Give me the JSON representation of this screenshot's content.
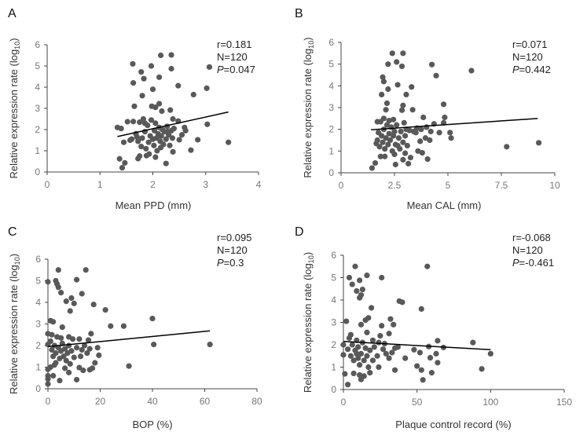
{
  "chart_data": [
    {
      "type": "scatter",
      "panel": "A",
      "xlabel": "Mean PPD (mm)",
      "ylabel": "Relative expression rate (log10)",
      "xlim": [
        0,
        4
      ],
      "ylim": [
        0,
        6
      ],
      "xticks": [
        "0",
        "1",
        "2",
        "3",
        "4"
      ],
      "yticks": [
        "0",
        "1",
        "2",
        "3",
        "4",
        "5",
        "6"
      ],
      "stats": {
        "r": "r=0.181",
        "n": "N=120",
        "p_label": "P",
        "p_value": "=0.047"
      },
      "fit": [
        [
          1.33,
          1.67
        ],
        [
          3.43,
          2.83
        ]
      ],
      "points": [
        [
          1.33,
          2.1
        ],
        [
          1.4,
          2.05
        ],
        [
          1.37,
          0.62
        ],
        [
          1.42,
          0.2
        ],
        [
          1.47,
          0.43
        ],
        [
          1.45,
          1.4
        ],
        [
          1.52,
          2.37
        ],
        [
          1.57,
          1.5
        ],
        [
          1.62,
          5.1
        ],
        [
          1.63,
          4.2
        ],
        [
          1.65,
          3.1
        ],
        [
          1.63,
          2.38
        ],
        [
          1.78,
          4.72
        ],
        [
          1.8,
          3.6
        ],
        [
          1.83,
          4.4
        ],
        [
          1.97,
          5.0
        ],
        [
          1.98,
          3.1
        ],
        [
          2.0,
          3.9
        ],
        [
          2.12,
          4.47
        ],
        [
          2.15,
          5.5
        ],
        [
          2.35,
          5.52
        ],
        [
          2.35,
          4.87
        ],
        [
          2.48,
          4.07
        ],
        [
          2.12,
          3.22
        ],
        [
          2.17,
          2.87
        ],
        [
          2.33,
          2.92
        ],
        [
          2.38,
          2.5
        ],
        [
          2.48,
          2.4
        ],
        [
          2.77,
          3.65
        ],
        [
          3.02,
          3.95
        ],
        [
          3.07,
          4.95
        ],
        [
          3.03,
          2.25
        ],
        [
          3.43,
          1.4
        ],
        [
          2.85,
          1.52
        ],
        [
          2.72,
          1.03
        ],
        [
          2.38,
          0.95
        ],
        [
          2.25,
          0.4
        ],
        [
          2.05,
          0.7
        ],
        [
          1.88,
          0.77
        ],
        [
          1.72,
          0.63
        ],
        [
          1.75,
          0.75
        ],
        [
          2.6,
          2.1
        ],
        [
          2.62,
          1.95
        ],
        [
          2.5,
          1.52
        ],
        [
          2.55,
          1.75
        ],
        [
          1.6,
          1.55
        ],
        [
          1.68,
          1.8
        ],
        [
          1.72,
          1.45
        ],
        [
          1.75,
          2.35
        ],
        [
          1.78,
          1.2
        ],
        [
          1.8,
          1.6
        ],
        [
          1.82,
          2.5
        ],
        [
          1.85,
          1.9
        ],
        [
          1.87,
          1.1
        ],
        [
          1.9,
          2.2
        ],
        [
          1.92,
          1.4
        ],
        [
          1.95,
          1.7
        ],
        [
          1.97,
          2.45
        ],
        [
          2.0,
          1.55
        ],
        [
          2.02,
          1.25
        ],
        [
          2.03,
          1.95
        ],
        [
          2.05,
          2.3
        ],
        [
          2.07,
          1.6
        ],
        [
          2.08,
          1.0
        ],
        [
          2.1,
          1.8
        ],
        [
          2.12,
          2.1
        ],
        [
          2.14,
          1.45
        ],
        [
          2.16,
          1.7
        ],
        [
          2.18,
          2.0
        ],
        [
          2.2,
          1.3
        ],
        [
          2.22,
          1.9
        ],
        [
          2.25,
          1.55
        ],
        [
          2.27,
          2.15
        ],
        [
          2.3,
          1.75
        ],
        [
          2.32,
          1.25
        ],
        [
          2.35,
          1.95
        ],
        [
          2.37,
          1.6
        ],
        [
          2.4,
          2.05
        ],
        [
          1.85,
          2.3
        ],
        [
          1.93,
          0.85
        ],
        [
          2.15,
          1.15
        ],
        [
          2.28,
          1.9
        ],
        [
          1.7,
          1.65
        ],
        [
          2.05,
          3.05
        ]
      ]
    },
    {
      "type": "scatter",
      "panel": "B",
      "xlabel": "Mean CAL (mm)",
      "ylabel": "Relative expression rate (log10)",
      "xlim": [
        0,
        10
      ],
      "ylim": [
        0,
        6
      ],
      "xticks": [
        "0",
        "2.5",
        "5",
        "7.5",
        "10"
      ],
      "yticks": [
        "0",
        "1",
        "2",
        "3",
        "4",
        "5",
        "6"
      ],
      "stats": {
        "r": "r=0.071",
        "n": "N=120",
        "p_label": "P",
        "p_value": "=0.442"
      },
      "fit": [
        [
          1.4,
          1.98
        ],
        [
          9.2,
          2.5
        ]
      ],
      "points": [
        [
          1.45,
          0.22
        ],
        [
          1.6,
          0.45
        ],
        [
          1.65,
          1.35
        ],
        [
          1.7,
          2.35
        ],
        [
          1.75,
          1.85
        ],
        [
          1.85,
          0.75
        ],
        [
          1.85,
          2.35
        ],
        [
          1.9,
          3.6
        ],
        [
          1.95,
          4.4
        ],
        [
          2.0,
          4.2
        ],
        [
          2.0,
          2.5
        ],
        [
          2.05,
          0.75
        ],
        [
          2.1,
          2.9
        ],
        [
          2.15,
          3.2
        ],
        [
          2.2,
          3.85
        ],
        [
          2.2,
          5.0
        ],
        [
          2.4,
          5.5
        ],
        [
          2.45,
          2.45
        ],
        [
          2.55,
          0.38
        ],
        [
          2.6,
          5.1
        ],
        [
          2.65,
          4.05
        ],
        [
          2.85,
          4.9
        ],
        [
          2.9,
          5.5
        ],
        [
          2.9,
          3.1
        ],
        [
          2.85,
          2.88
        ],
        [
          2.9,
          0.6
        ],
        [
          3.0,
          0.9
        ],
        [
          3.05,
          3.6
        ],
        [
          3.15,
          0.42
        ],
        [
          3.25,
          0.7
        ],
        [
          3.3,
          3.95
        ],
        [
          3.35,
          2.9
        ],
        [
          3.5,
          1.85
        ],
        [
          3.6,
          1.0
        ],
        [
          3.7,
          1.45
        ],
        [
          3.8,
          0.92
        ],
        [
          3.85,
          2.55
        ],
        [
          3.95,
          1.6
        ],
        [
          4.05,
          0.63
        ],
        [
          4.15,
          1.5
        ],
        [
          4.25,
          4.98
        ],
        [
          4.35,
          2.25
        ],
        [
          4.45,
          4.47
        ],
        [
          4.6,
          1.85
        ],
        [
          4.8,
          2.3
        ],
        [
          4.8,
          3.15
        ],
        [
          4.85,
          2.55
        ],
        [
          5.1,
          1.85
        ],
        [
          5.15,
          1.6
        ],
        [
          6.1,
          4.7
        ],
        [
          7.75,
          1.2
        ],
        [
          9.25,
          1.38
        ],
        [
          1.7,
          1.5
        ],
        [
          1.8,
          1.2
        ],
        [
          1.9,
          1.7
        ],
        [
          1.95,
          1.4
        ],
        [
          2.0,
          2.0
        ],
        [
          2.05,
          1.1
        ],
        [
          2.1,
          1.6
        ],
        [
          2.15,
          2.2
        ],
        [
          2.2,
          1.3
        ],
        [
          2.25,
          1.8
        ],
        [
          2.3,
          1.5
        ],
        [
          2.35,
          2.1
        ],
        [
          2.4,
          1.0
        ],
        [
          2.45,
          1.7
        ],
        [
          2.5,
          1.9
        ],
        [
          2.55,
          1.3
        ],
        [
          2.6,
          2.2
        ],
        [
          2.7,
          1.6
        ],
        [
          2.75,
          1.1
        ],
        [
          2.8,
          1.9
        ],
        [
          2.9,
          1.4
        ],
        [
          2.95,
          2.3
        ],
        [
          3.0,
          1.7
        ],
        [
          3.05,
          2.0
        ],
        [
          3.1,
          1.25
        ],
        [
          3.2,
          1.95
        ],
        [
          3.4,
          1.9
        ],
        [
          3.55,
          2.05
        ],
        [
          3.75,
          2.0
        ],
        [
          4.0,
          2.1
        ],
        [
          4.2,
          1.9
        ],
        [
          2.25,
          2.4
        ],
        [
          2.5,
          0.85
        ],
        [
          2.65,
          1.25
        ]
      ]
    },
    {
      "type": "scatter",
      "panel": "C",
      "xlabel": "BOP (%)",
      "ylabel": "Relative expression rate (log10)",
      "xlim": [
        0,
        80
      ],
      "ylim": [
        0,
        6
      ],
      "xticks": [
        "0",
        "20",
        "40",
        "60",
        "80"
      ],
      "yticks": [
        "0",
        "1",
        "2",
        "3",
        "4",
        "5",
        "6"
      ],
      "stats": {
        "r": "r=0.095",
        "n": "N=120",
        "p_label": "P",
        "p_value": "=0.3"
      },
      "fit": [
        [
          0,
          1.95
        ],
        [
          62,
          2.68
        ]
      ],
      "points": [
        [
          0,
          4.95
        ],
        [
          0,
          2.55
        ],
        [
          0,
          2.05
        ],
        [
          0,
          0.9
        ],
        [
          0,
          0.6
        ],
        [
          0,
          0.45
        ],
        [
          0,
          0.22
        ],
        [
          1,
          3.15
        ],
        [
          2,
          3.1
        ],
        [
          3,
          5.0
        ],
        [
          3.5,
          4.85
        ],
        [
          4,
          5.5
        ],
        [
          4,
          4.7
        ],
        [
          5,
          4.45
        ],
        [
          5,
          2.35
        ],
        [
          5.5,
          2.85
        ],
        [
          4.5,
          0.38
        ],
        [
          7,
          4.05
        ],
        [
          8,
          2.4
        ],
        [
          8.5,
          3.6
        ],
        [
          9,
          4.2
        ],
        [
          8,
          0.75
        ],
        [
          10,
          3.95
        ],
        [
          11,
          5.05
        ],
        [
          11,
          0.42
        ],
        [
          12,
          0.98
        ],
        [
          13,
          4.4
        ],
        [
          14.5,
          5.5
        ],
        [
          13.5,
          0.85
        ],
        [
          16,
          0.88
        ],
        [
          16.5,
          2.55
        ],
        [
          17.5,
          3.9
        ],
        [
          18,
          1.2
        ],
        [
          19,
          1.9
        ],
        [
          19.5,
          1.55
        ],
        [
          22,
          3.65
        ],
        [
          24,
          2.9
        ],
        [
          29,
          2.9
        ],
        [
          31,
          1.05
        ],
        [
          40,
          3.25
        ],
        [
          40.5,
          2.05
        ],
        [
          62,
          2.05
        ],
        [
          1,
          2.2
        ],
        [
          1.5,
          1.8
        ],
        [
          2,
          1.5
        ],
        [
          2.5,
          2.0
        ],
        [
          3,
          1.2
        ],
        [
          3,
          1.65
        ],
        [
          3.5,
          2.4
        ],
        [
          4,
          1.9
        ],
        [
          4.5,
          1.4
        ],
        [
          5,
          1.75
        ],
        [
          5.5,
          2.1
        ],
        [
          6,
          1.5
        ],
        [
          6.5,
          1.85
        ],
        [
          6.5,
          0.95
        ],
        [
          7,
          1.3
        ],
        [
          7.5,
          1.65
        ],
        [
          8,
          2.0
        ],
        [
          8.5,
          1.15
        ],
        [
          9,
          1.75
        ],
        [
          9.5,
          2.3
        ],
        [
          10,
          1.45
        ],
        [
          11,
          1.9
        ],
        [
          12,
          2.3
        ],
        [
          12.5,
          1.5
        ],
        [
          13,
          1.8
        ],
        [
          14,
          2.0
        ],
        [
          15,
          1.65
        ],
        [
          15.5,
          2.25
        ],
        [
          16,
          1.85
        ],
        [
          17,
          0.95
        ],
        [
          1,
          1.0
        ],
        [
          2,
          0.6
        ],
        [
          1.5,
          2.5
        ],
        [
          2.5,
          1.1
        ]
      ]
    },
    {
      "type": "scatter",
      "panel": "D",
      "xlabel": "Plaque control record (%)",
      "ylabel": "Relative expression rate (log10)",
      "xlim": [
        0,
        150
      ],
      "ylim": [
        0,
        6
      ],
      "xticks": [
        "0",
        "50",
        "100",
        "150"
      ],
      "yticks": [
        "0",
        "1",
        "2",
        "3",
        "4",
        "5",
        "6"
      ],
      "stats": {
        "r": "r=-0.068",
        "n": "N=120",
        "p_label": "P",
        "p_value": "=-0.461"
      },
      "fit": [
        [
          0,
          2.15
        ],
        [
          100,
          1.78
        ]
      ],
      "points": [
        [
          0,
          2.0
        ],
        [
          0,
          1.55
        ],
        [
          1,
          0.7
        ],
        [
          2,
          3.05
        ],
        [
          3,
          0.22
        ],
        [
          4,
          5.0
        ],
        [
          6,
          4.7
        ],
        [
          8,
          5.5
        ],
        [
          9,
          4.4
        ],
        [
          11,
          4.88
        ],
        [
          11,
          4.1
        ],
        [
          12,
          4.22
        ],
        [
          13,
          4.47
        ],
        [
          15,
          3.1
        ],
        [
          16,
          5.1
        ],
        [
          17,
          3.2
        ],
        [
          19,
          3.65
        ],
        [
          12,
          2.9
        ],
        [
          26,
          2.85
        ],
        [
          26,
          5.0
        ],
        [
          31,
          2.5
        ],
        [
          32,
          3.15
        ],
        [
          34,
          2.9
        ],
        [
          38,
          3.95
        ],
        [
          40,
          3.9
        ],
        [
          42,
          1.4
        ],
        [
          35,
          0.87
        ],
        [
          48,
          1.78
        ],
        [
          50,
          1.05
        ],
        [
          52,
          1.65
        ],
        [
          53,
          0.87
        ],
        [
          53,
          3.6
        ],
        [
          54,
          0.43
        ],
        [
          57,
          5.5
        ],
        [
          58,
          1.92
        ],
        [
          59,
          1.42
        ],
        [
          60,
          0.75
        ],
        [
          63,
          1.6
        ],
        [
          64,
          2.18
        ],
        [
          64,
          1.2
        ],
        [
          68,
          1.88
        ],
        [
          88,
          2.1
        ],
        [
          94,
          0.92
        ],
        [
          100,
          1.6
        ],
        [
          3,
          1.8
        ],
        [
          4,
          2.3
        ],
        [
          5,
          1.5
        ],
        [
          6,
          2.0
        ],
        [
          7,
          1.3
        ],
        [
          7,
          0.72
        ],
        [
          8,
          1.75
        ],
        [
          9,
          2.2
        ],
        [
          10,
          1.4
        ],
        [
          10,
          1.9
        ],
        [
          11,
          1.1
        ],
        [
          12,
          1.6
        ],
        [
          12,
          0.45
        ],
        [
          13,
          2.1
        ],
        [
          14,
          1.3
        ],
        [
          14,
          0.6
        ],
        [
          15,
          1.85
        ],
        [
          16,
          1.5
        ],
        [
          16,
          2.55
        ],
        [
          17,
          1.0
        ],
        [
          18,
          1.75
        ],
        [
          18,
          0.75
        ],
        [
          20,
          1.3
        ],
        [
          21,
          1.9
        ],
        [
          23,
          1.5
        ],
        [
          24,
          1.0
        ],
        [
          24,
          2.1
        ],
        [
          25,
          2.4
        ],
        [
          27,
          1.8
        ],
        [
          28,
          2.05
        ],
        [
          29,
          1.6
        ],
        [
          31,
          1.4
        ],
        [
          33,
          1.65
        ],
        [
          35,
          1.85
        ],
        [
          37,
          1.9
        ],
        [
          9,
          1.6
        ],
        [
          11,
          0.65
        ],
        [
          5,
          2.45
        ],
        [
          20,
          2.2
        ]
      ]
    }
  ]
}
